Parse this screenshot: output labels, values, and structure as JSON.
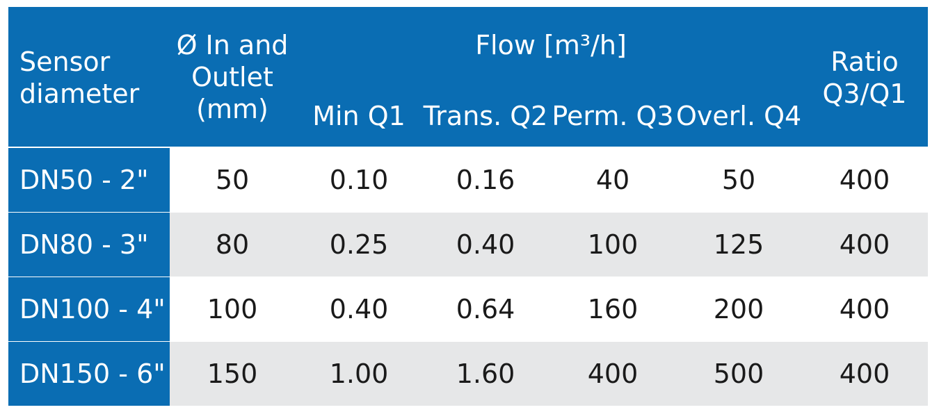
{
  "colors": {
    "header_bg": "#0a6db3",
    "row_alt_bg": "#e6e7e8",
    "row_bg": "#ffffff",
    "text_dark": "#1a1a1a",
    "text_light": "#ffffff"
  },
  "header": {
    "sensor_diameter": [
      "Sensor",
      "diameter"
    ],
    "inlet_outlet": [
      "Ø In and",
      "Outlet",
      "(mm)"
    ],
    "flow_group": "Flow [m³/h]",
    "min_q1": "Min Q1",
    "trans_q2": "Trans. Q2",
    "perm_q3": "Perm. Q3",
    "overl_q4": "Overl. Q4",
    "ratio": [
      "Ratio",
      "Q3/Q1"
    ]
  },
  "rows": [
    {
      "label": "DN50 - 2\"",
      "mm": "50",
      "q1": "0.10",
      "q2": "0.16",
      "q3": "40",
      "q4": "50",
      "ratio": "400"
    },
    {
      "label": "DN80 - 3\"",
      "mm": "80",
      "q1": "0.25",
      "q2": "0.40",
      "q3": "100",
      "q4": "125",
      "ratio": "400"
    },
    {
      "label": "DN100 - 4\"",
      "mm": "100",
      "q1": "0.40",
      "q2": "0.64",
      "q3": "160",
      "q4": "200",
      "ratio": "400"
    },
    {
      "label": "DN150 - 6\"",
      "mm": "150",
      "q1": "1.00",
      "q2": "1.60",
      "q3": "400",
      "q4": "500",
      "ratio": "400"
    }
  ]
}
